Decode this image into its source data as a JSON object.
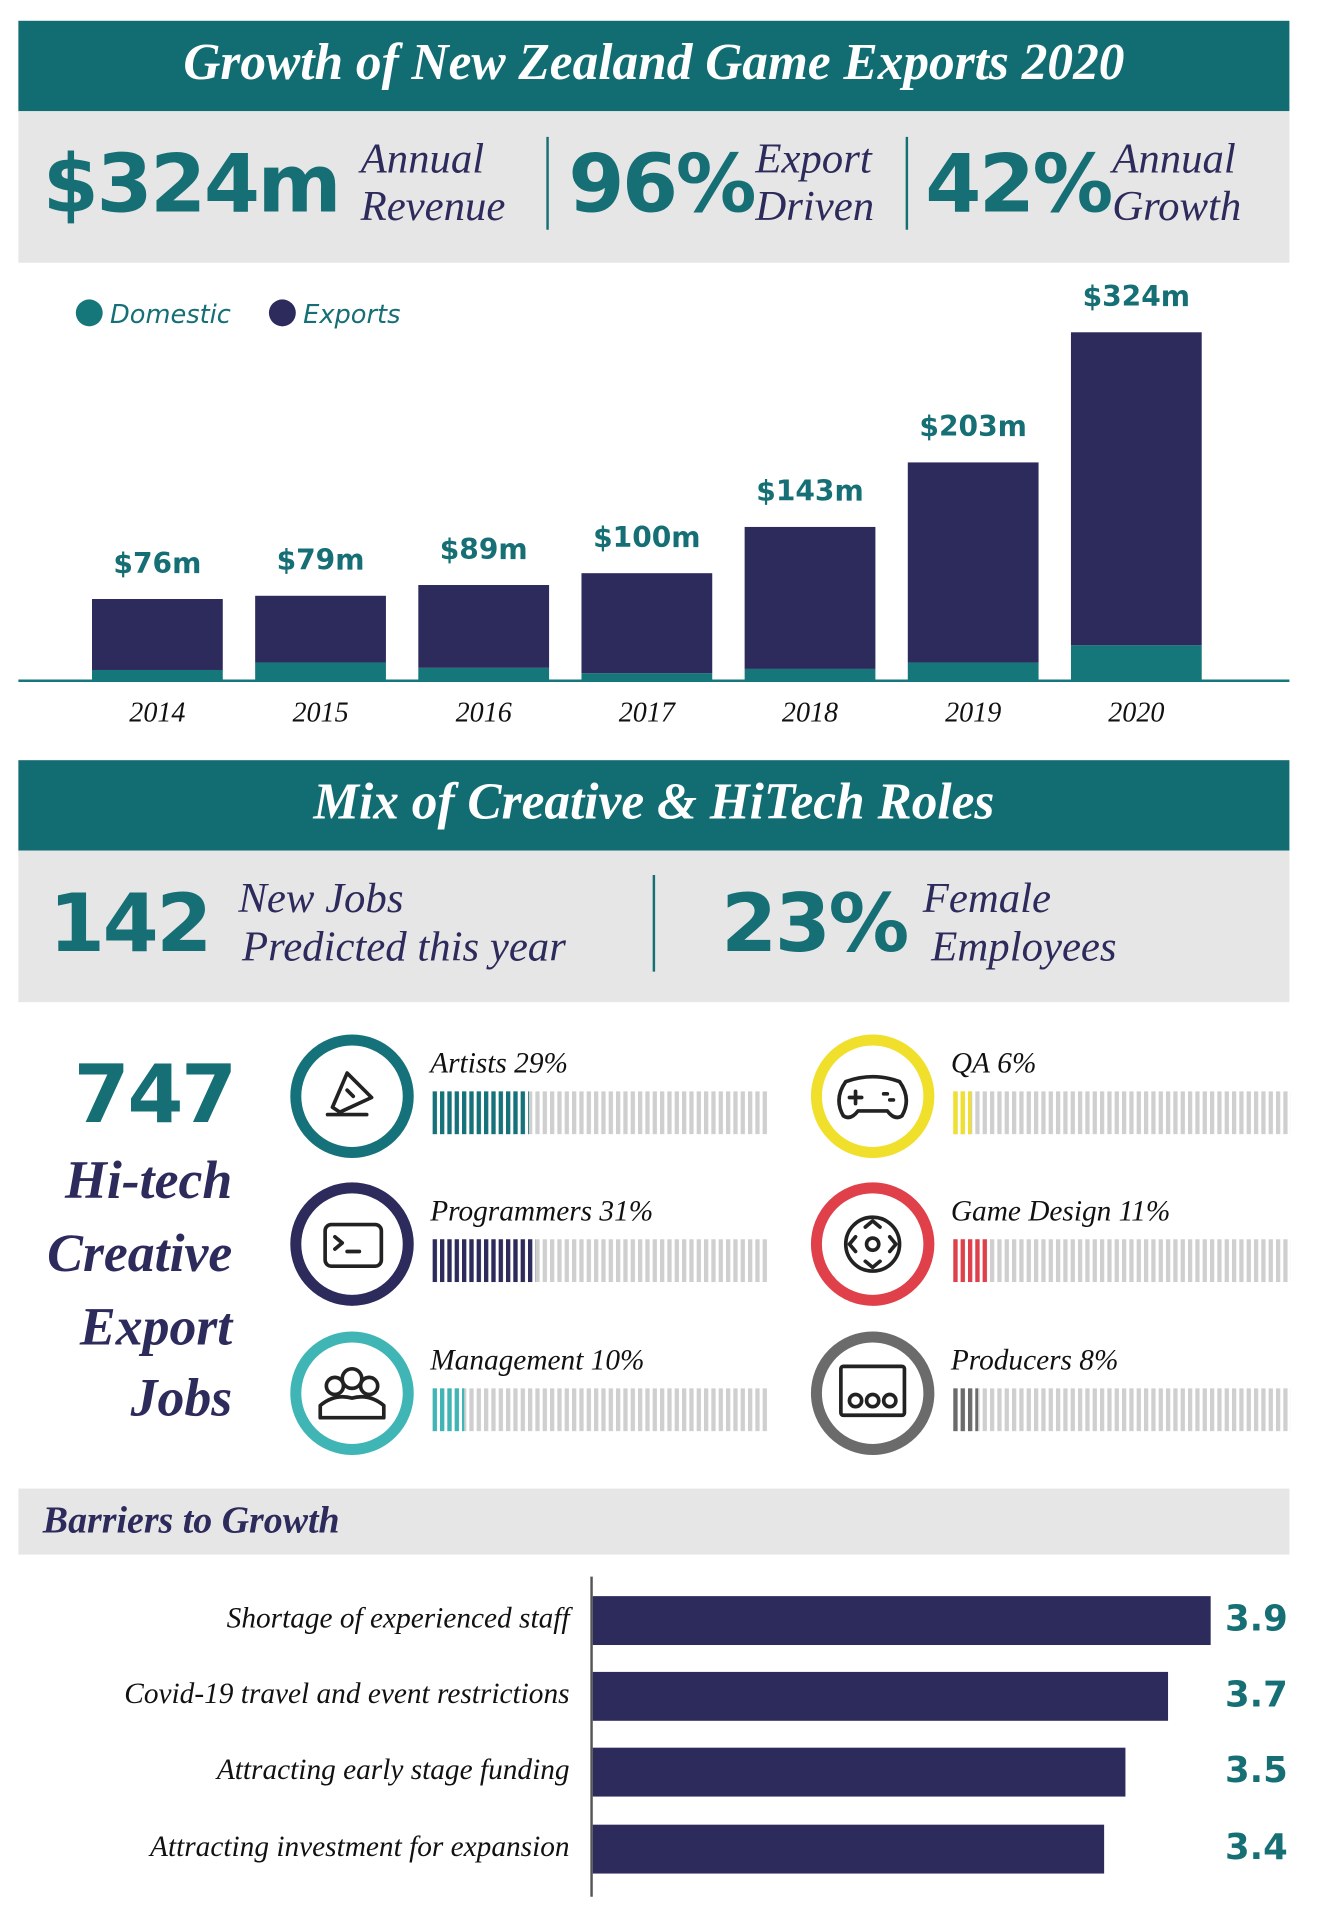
{
  "header": {
    "title": "Growth of New Zealand Game Exports 2020",
    "stats": [
      {
        "value": "$324m",
        "label": [
          "Annual",
          "Revenue"
        ]
      },
      {
        "value": "96%",
        "label": [
          "Export",
          "Driven"
        ]
      },
      {
        "value": "42%",
        "label": [
          "Annual",
          "Growth"
        ]
      }
    ]
  },
  "roles_section": {
    "title": "Mix of Creative & HiTech Roles",
    "stats": [
      {
        "value": "142",
        "label": [
          "New Jobs",
          "Predicted this year"
        ]
      },
      {
        "value": "23%",
        "label": [
          "Female",
          "Employees"
        ]
      }
    ],
    "total": {
      "value": "747",
      "label": [
        "Hi-tech",
        "Creative",
        "Export",
        "Jobs"
      ]
    }
  },
  "chart_data": [
    {
      "type": "stacked_bar",
      "categories": [
        "2014",
        "2015",
        "2016",
        "2017",
        "2018",
        "2019",
        "2020"
      ],
      "series": [
        {
          "name": "Domestic",
          "color": "#16777a",
          "values": [
            10,
            17,
            12,
            7,
            11,
            17,
            33
          ]
        },
        {
          "name": "Exports",
          "color": "#2d2a5c",
          "values": [
            66,
            62,
            77,
            93,
            132,
            186,
            291
          ]
        }
      ],
      "totals": {
        "values": [
          76,
          79,
          89,
          100,
          143,
          203,
          324
        ],
        "value_labels": [
          "$76m",
          "$79m",
          "$89m",
          "$100m",
          "$143m",
          "$203m",
          "$324m"
        ]
      },
      "ylim": [
        0,
        350
      ],
      "legend": "top-left"
    },
    {
      "type": "progress",
      "categories": [
        "Artists",
        "Programmers",
        "Management",
        "QA",
        "Game Design",
        "Producers"
      ],
      "values": [
        29,
        31,
        10,
        6,
        11,
        8
      ],
      "value_labels": [
        "29%",
        "31%",
        "10%",
        "6%",
        "11%",
        "8%"
      ],
      "colors": [
        "#16727a",
        "#2d2a5c",
        "#3fb5b5",
        "#f0e02c",
        "#e0404a",
        "#6b6b6b"
      ],
      "xlim": [
        0,
        100
      ]
    },
    {
      "type": "hbar",
      "title": "Barriers to Growth",
      "categories": [
        "Shortage of experienced staff",
        "Covid-19 travel and event restrictions",
        "Attracting early stage funding",
        "Attracting investment for expansion"
      ],
      "values": [
        3.9,
        3.7,
        3.5,
        3.4
      ],
      "color": "#2d2a5c",
      "xlim": [
        1,
        4
      ]
    }
  ]
}
